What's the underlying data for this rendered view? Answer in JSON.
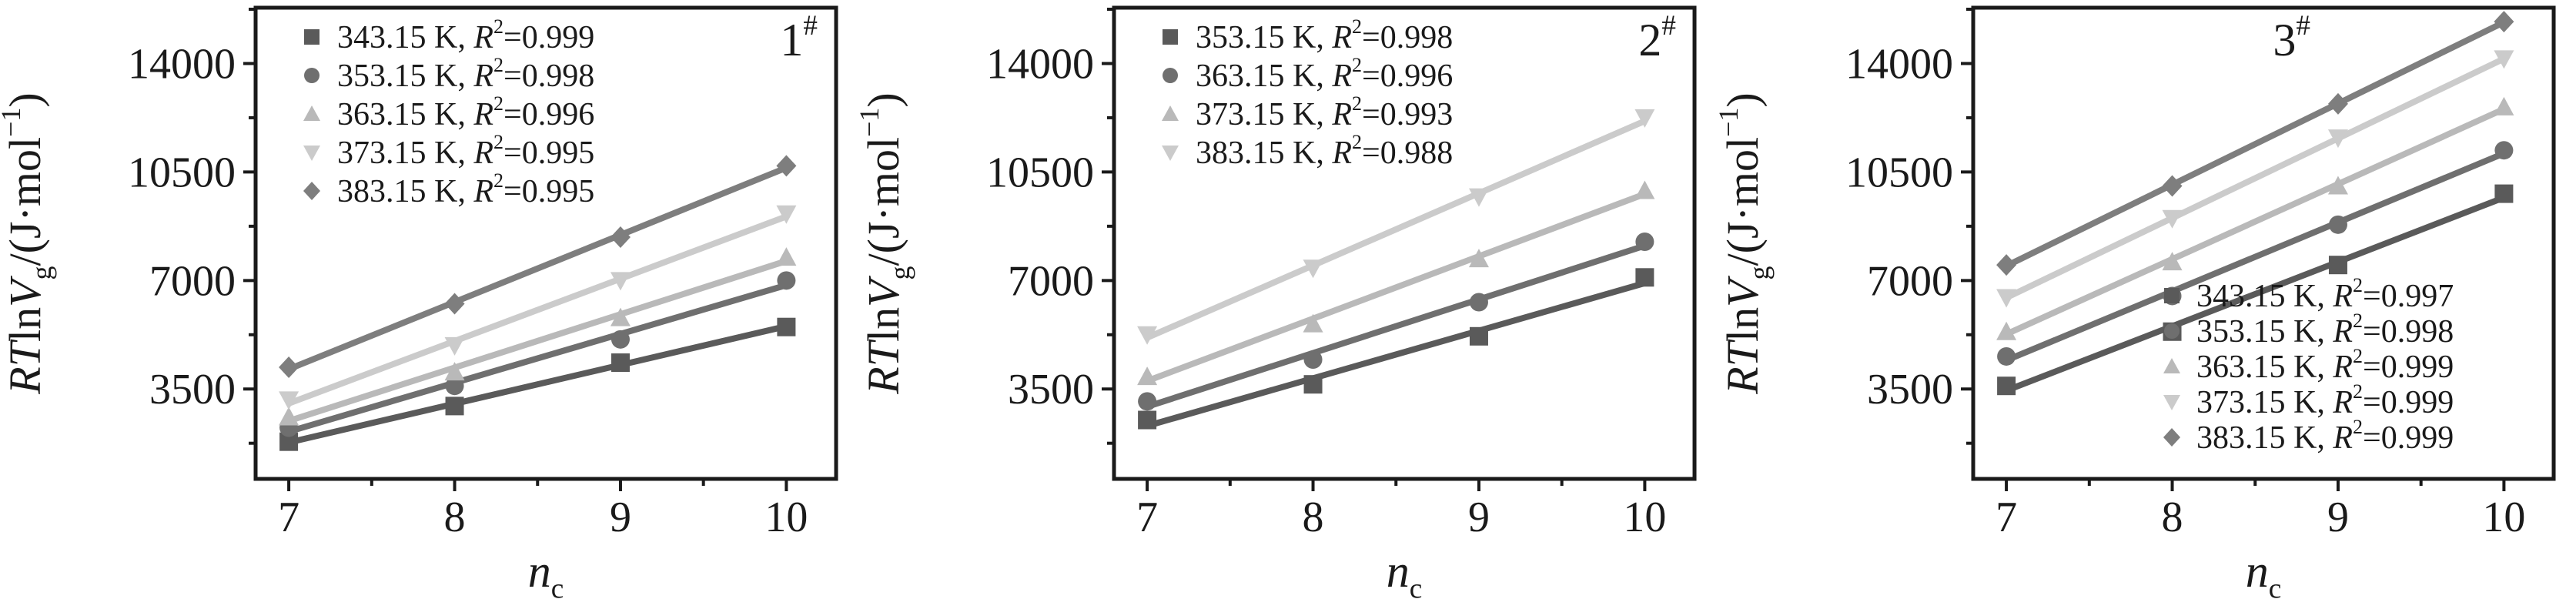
{
  "page": {
    "background": "#ffffff",
    "axis_color": "#1a1a1a",
    "text_color": "#1a1a1a"
  },
  "axes": {
    "xlabel_parts": [
      {
        "t": "n",
        "italic": true
      },
      {
        "t": "c",
        "script": "sub"
      }
    ],
    "ylabel_parts": [
      {
        "t": "RT",
        "italic": true
      },
      {
        "t": "ln"
      },
      {
        "t": "V",
        "italic": true
      },
      {
        "t": "g",
        "script": "sub"
      },
      {
        "t": "/(J·mol"
      },
      {
        "t": "−1",
        "script": "sup"
      },
      {
        "t": ")"
      }
    ]
  },
  "chart_data": [
    {
      "type": "scatter",
      "panel_label": "1",
      "panel_label_sup": "#",
      "x": [
        7,
        8,
        9,
        10
      ],
      "xticks": [
        7,
        8,
        9,
        10
      ],
      "yticks": [
        3500,
        7000,
        10500,
        14000
      ],
      "xlim": [
        6.8,
        10.3
      ],
      "ylim": [
        600,
        15800
      ],
      "grid": false,
      "legend_position": "top-left",
      "xlabel": "nc",
      "ylabel": "RTlnVg/(J·mol−1)",
      "series": [
        {
          "name": "343.15 K",
          "r2": "0.999",
          "marker": "square",
          "color": "#5a5a5a",
          "values": [
            1800,
            2950,
            4350,
            5500
          ]
        },
        {
          "name": "353.15 K",
          "r2": "0.998",
          "marker": "circle",
          "color": "#6f6f6f",
          "values": [
            2250,
            3600,
            5100,
            7000
          ]
        },
        {
          "name": "363.15 K",
          "r2": "0.996",
          "marker": "triangle-up",
          "color": "#b9b9b9",
          "values": [
            2600,
            4050,
            5800,
            7750
          ]
        },
        {
          "name": "373.15 K",
          "r2": "0.995",
          "marker": "triangle-down",
          "color": "#cbcbcb",
          "values": [
            3150,
            4900,
            7000,
            9150
          ]
        },
        {
          "name": "383.15 K",
          "r2": "0.995",
          "marker": "diamond",
          "color": "#7e7e7e",
          "values": [
            4200,
            6250,
            8400,
            10700
          ]
        }
      ]
    },
    {
      "type": "scatter",
      "panel_label": "2",
      "panel_label_sup": "#",
      "x": [
        7,
        8,
        9,
        10
      ],
      "xticks": [
        7,
        8,
        9,
        10
      ],
      "yticks": [
        3500,
        7000,
        10500,
        14000
      ],
      "xlim": [
        6.8,
        10.3
      ],
      "ylim": [
        600,
        15800
      ],
      "grid": false,
      "legend_position": "top-left",
      "xlabel": "nc",
      "ylabel": "RTlnVg/(J·mol−1)",
      "series": [
        {
          "name": "353.15 K",
          "r2": "0.998",
          "marker": "square",
          "color": "#5a5a5a",
          "values": [
            2500,
            3650,
            5200,
            7100
          ]
        },
        {
          "name": "363.15 K",
          "r2": "0.996",
          "marker": "circle",
          "color": "#6f6f6f",
          "values": [
            3100,
            4450,
            6300,
            8250
          ]
        },
        {
          "name": "373.15 K",
          "r2": "0.993",
          "marker": "triangle-up",
          "color": "#b9b9b9",
          "values": [
            3900,
            5600,
            7700,
            9900
          ]
        },
        {
          "name": "383.15 K",
          "r2": "0.988",
          "marker": "triangle-down",
          "color": "#cbcbcb",
          "values": [
            5250,
            7400,
            9700,
            12250
          ]
        }
      ]
    },
    {
      "type": "scatter",
      "panel_label": "3",
      "panel_label_sup": "#",
      "x": [
        7,
        8,
        9,
        10
      ],
      "xticks": [
        7,
        8,
        9,
        10
      ],
      "yticks": [
        3500,
        7000,
        10500,
        14000
      ],
      "xlim": [
        6.8,
        10.3
      ],
      "ylim": [
        600,
        15800
      ],
      "grid": false,
      "legend_position": "bottom-right",
      "xlabel": "nc",
      "ylabel": "RTlnVg/(J·mol−1)",
      "series": [
        {
          "name": "343.15 K",
          "r2": "0.997",
          "marker": "square",
          "color": "#5a5a5a",
          "values": [
            3600,
            5350,
            7500,
            9800
          ]
        },
        {
          "name": "353.15 K",
          "r2": "0.998",
          "marker": "circle",
          "color": "#6f6f6f",
          "values": [
            4550,
            6500,
            8800,
            11200
          ]
        },
        {
          "name": "363.15 K",
          "r2": "0.999",
          "marker": "triangle-up",
          "color": "#b9b9b9",
          "values": [
            5350,
            7600,
            10050,
            12600
          ]
        },
        {
          "name": "373.15 K",
          "r2": "0.999",
          "marker": "triangle-down",
          "color": "#cbcbcb",
          "values": [
            6450,
            9000,
            11600,
            14150
          ]
        },
        {
          "name": "383.15 K",
          "r2": "0.999",
          "marker": "diamond",
          "color": "#7e7e7e",
          "values": [
            7500,
            10050,
            12700,
            15350
          ]
        }
      ]
    }
  ]
}
